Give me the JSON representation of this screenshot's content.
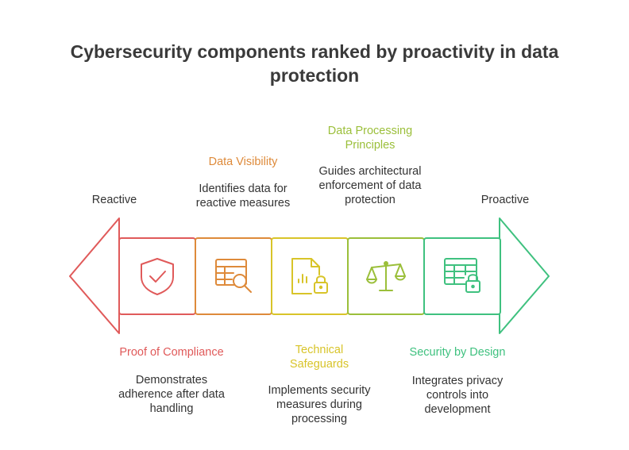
{
  "title": {
    "line1": "Cybersecurity components ranked by proactivity in data",
    "line2": "protection"
  },
  "axis": {
    "left_label": "Reactive",
    "right_label": "Proactive"
  },
  "components": [
    {
      "name": "Proof of Compliance",
      "description": [
        "Demonstrates",
        "adherence after data",
        "handling"
      ],
      "color": "#e05a5a",
      "icon": "shield-check-icon"
    },
    {
      "name": "Data Visibility",
      "description": [
        "Identifies data for",
        "reactive measures"
      ],
      "color": "#de8a3a",
      "icon": "table-search-icon"
    },
    {
      "name_lines": [
        "Technical",
        "Safeguards"
      ],
      "description": [
        "Implements security",
        "measures during",
        "processing"
      ],
      "color": "#d8c429",
      "icon": "document-chart-lock-icon"
    },
    {
      "name_lines": [
        "Data Processing",
        "Principles"
      ],
      "description": [
        "Guides architectural",
        "enforcement of data",
        "protection"
      ],
      "color": "#9bbf3a",
      "icon": "balance-scale-icon"
    },
    {
      "name": "Security by Design",
      "description": [
        "Integrates privacy",
        "controls into",
        "development"
      ],
      "color": "#3fc17f",
      "icon": "table-lock-icon"
    }
  ]
}
